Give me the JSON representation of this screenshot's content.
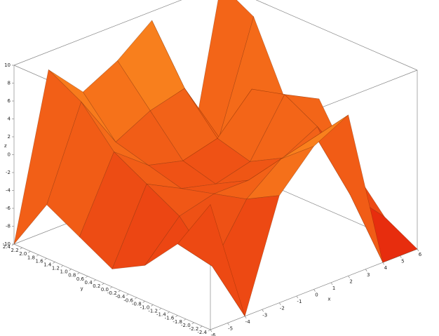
{
  "chart_data": {
    "type": "surface",
    "x_label": "x",
    "y_label": "y",
    "z_label": "z",
    "x": [
      -6,
      -4,
      -2,
      0,
      2,
      4,
      6
    ],
    "y": [
      -2.4,
      -1.6,
      -0.8,
      0,
      0.8,
      1.6,
      2.4
    ],
    "z": [
      [
        4,
        -10,
        2,
        6,
        8,
        -10,
        -10
      ],
      [
        -2,
        -6,
        0,
        3,
        4,
        -4,
        -8
      ],
      [
        -6,
        -2,
        -1,
        -1,
        0,
        2,
        -4
      ],
      [
        -8,
        0,
        -2,
        -3,
        -2,
        4,
        2
      ],
      [
        -6,
        2,
        -1,
        -2,
        -1,
        3,
        0
      ],
      [
        -4,
        6,
        0,
        2,
        3,
        -4,
        8
      ],
      [
        -10,
        8,
        4,
        6,
        9,
        -10,
        10
      ]
    ],
    "color_low": "#e4200c",
    "color_high": "#ff9e22",
    "xlim": [
      -6,
      6
    ],
    "ylim": [
      -2.4,
      2.4
    ],
    "zlim": [
      -10,
      10
    ],
    "xticks": [
      -6,
      -5,
      -4,
      -3,
      -2,
      -1,
      0,
      1,
      2,
      3,
      4,
      5,
      6
    ],
    "yticks": [
      -2.4,
      -2.2,
      {
        "value": -2,
        "label": "-2.0"
      },
      -1.8,
      -1.6,
      -1.4,
      -1.2,
      {
        "value": -1,
        "label": "-1.0"
      },
      -0.8,
      -0.6,
      -0.4,
      -0.2,
      {
        "value": 0,
        "label": "0.0"
      },
      0.2,
      0.4,
      0.6,
      0.8,
      {
        "value": 1,
        "label": "1.0"
      },
      1.2,
      1.4,
      1.6,
      1.8,
      {
        "value": 2,
        "label": "2.0"
      },
      2.2,
      2.4
    ],
    "zticks": [
      -10,
      -8,
      -6,
      -4,
      -2,
      0,
      2,
      4,
      6,
      8,
      10
    ]
  }
}
